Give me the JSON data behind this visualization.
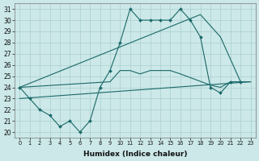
{
  "bg_color": "#cce8e8",
  "grid_color": "#aacfcf",
  "line_color": "#1a6868",
  "xlim": [
    -0.5,
    23.5
  ],
  "ylim": [
    19.5,
    31.5
  ],
  "xticks": [
    0,
    1,
    2,
    3,
    4,
    5,
    6,
    7,
    8,
    9,
    10,
    11,
    12,
    13,
    14,
    15,
    16,
    17,
    18,
    19,
    20,
    21,
    22,
    23
  ],
  "yticks": [
    20,
    21,
    22,
    23,
    24,
    25,
    26,
    27,
    28,
    29,
    30,
    31
  ],
  "xlabel": "Humidex (Indice chaleur)",
  "line1_x": [
    0,
    1,
    2,
    3,
    4,
    5,
    6,
    7,
    8,
    9,
    10,
    11,
    12,
    13,
    14,
    15,
    16,
    17,
    18,
    19,
    20,
    21,
    22
  ],
  "line1_y": [
    24,
    23,
    22,
    21.5,
    20.5,
    21,
    20,
    21,
    24,
    25.5,
    28,
    31,
    30,
    30,
    30,
    30,
    31,
    30,
    28.5,
    24,
    23.5,
    24.5,
    24.5
  ],
  "line2_x": [
    0,
    23
  ],
  "line2_y": [
    23.0,
    24.5
  ],
  "line3_x": [
    0,
    18,
    20,
    22,
    23
  ],
  "line3_y": [
    24.0,
    30.5,
    28.5,
    24.5,
    24.5
  ],
  "line4_x": [
    0,
    9,
    10,
    11,
    12,
    13,
    14,
    15,
    16,
    19,
    20,
    21,
    22,
    23
  ],
  "line4_y": [
    24.0,
    24.5,
    25.5,
    25.5,
    25.2,
    25.5,
    25.5,
    25.5,
    25.2,
    24.2,
    24.0,
    24.5,
    24.5,
    24.5
  ]
}
